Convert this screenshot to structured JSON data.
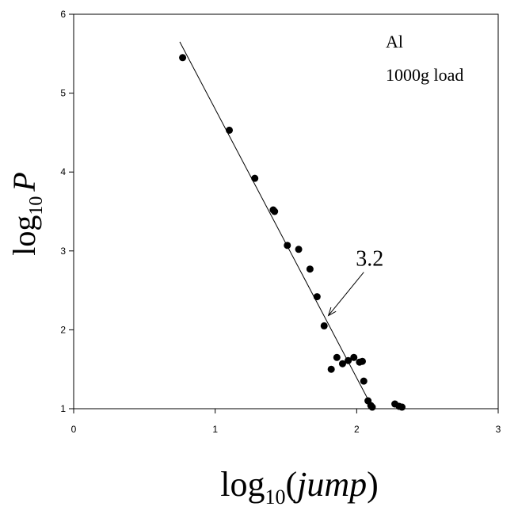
{
  "chart_data": {
    "type": "scatter",
    "title": "",
    "xlabel": {
      "main": "log",
      "sub": "10",
      "var": "jump",
      "open": "(",
      "close": ")"
    },
    "ylabel": {
      "main": "log",
      "sub": "10",
      "var": "P"
    },
    "xlim": [
      0,
      3
    ],
    "ylim": [
      1,
      6
    ],
    "x_ticks": [
      0,
      1,
      2,
      3
    ],
    "y_ticks": [
      1,
      2,
      3,
      4,
      5,
      6
    ],
    "x_tick_labels": [
      "0",
      "1",
      "2",
      "3"
    ],
    "y_tick_labels": [
      "1",
      "2",
      "3",
      "4",
      "5",
      "6"
    ],
    "grid": false,
    "legend": {
      "placement": "top-right",
      "lines": [
        "Al",
        "1000g load"
      ]
    },
    "series": [
      {
        "marker": "filled-circle",
        "color": "#000000",
        "points": [
          [
            0.77,
            5.45
          ],
          [
            1.1,
            4.53
          ],
          [
            1.28,
            3.92
          ],
          [
            1.41,
            3.52
          ],
          [
            1.42,
            3.5
          ],
          [
            1.51,
            3.07
          ],
          [
            1.59,
            3.02
          ],
          [
            1.67,
            2.77
          ],
          [
            1.72,
            2.42
          ],
          [
            1.77,
            2.05
          ],
          [
            1.82,
            1.5
          ],
          [
            1.86,
            1.65
          ],
          [
            1.9,
            1.57
          ],
          [
            1.94,
            1.61
          ],
          [
            1.98,
            1.65
          ],
          [
            2.02,
            1.59
          ],
          [
            2.04,
            1.6
          ],
          [
            2.05,
            1.35
          ],
          [
            2.08,
            1.1
          ],
          [
            2.1,
            1.04
          ],
          [
            2.11,
            1.02
          ],
          [
            2.27,
            1.06
          ],
          [
            2.3,
            1.03
          ],
          [
            2.32,
            1.02
          ]
        ]
      }
    ],
    "fit_line": {
      "x1": 0.75,
      "y1": 5.65,
      "x2": 2.1,
      "y2": 1.05,
      "color": "#000000"
    },
    "annotations": [
      {
        "text": "3.2",
        "arrow_from": [
          2.05,
          2.73
        ],
        "arrow_to": [
          1.8,
          2.18
        ]
      }
    ]
  }
}
